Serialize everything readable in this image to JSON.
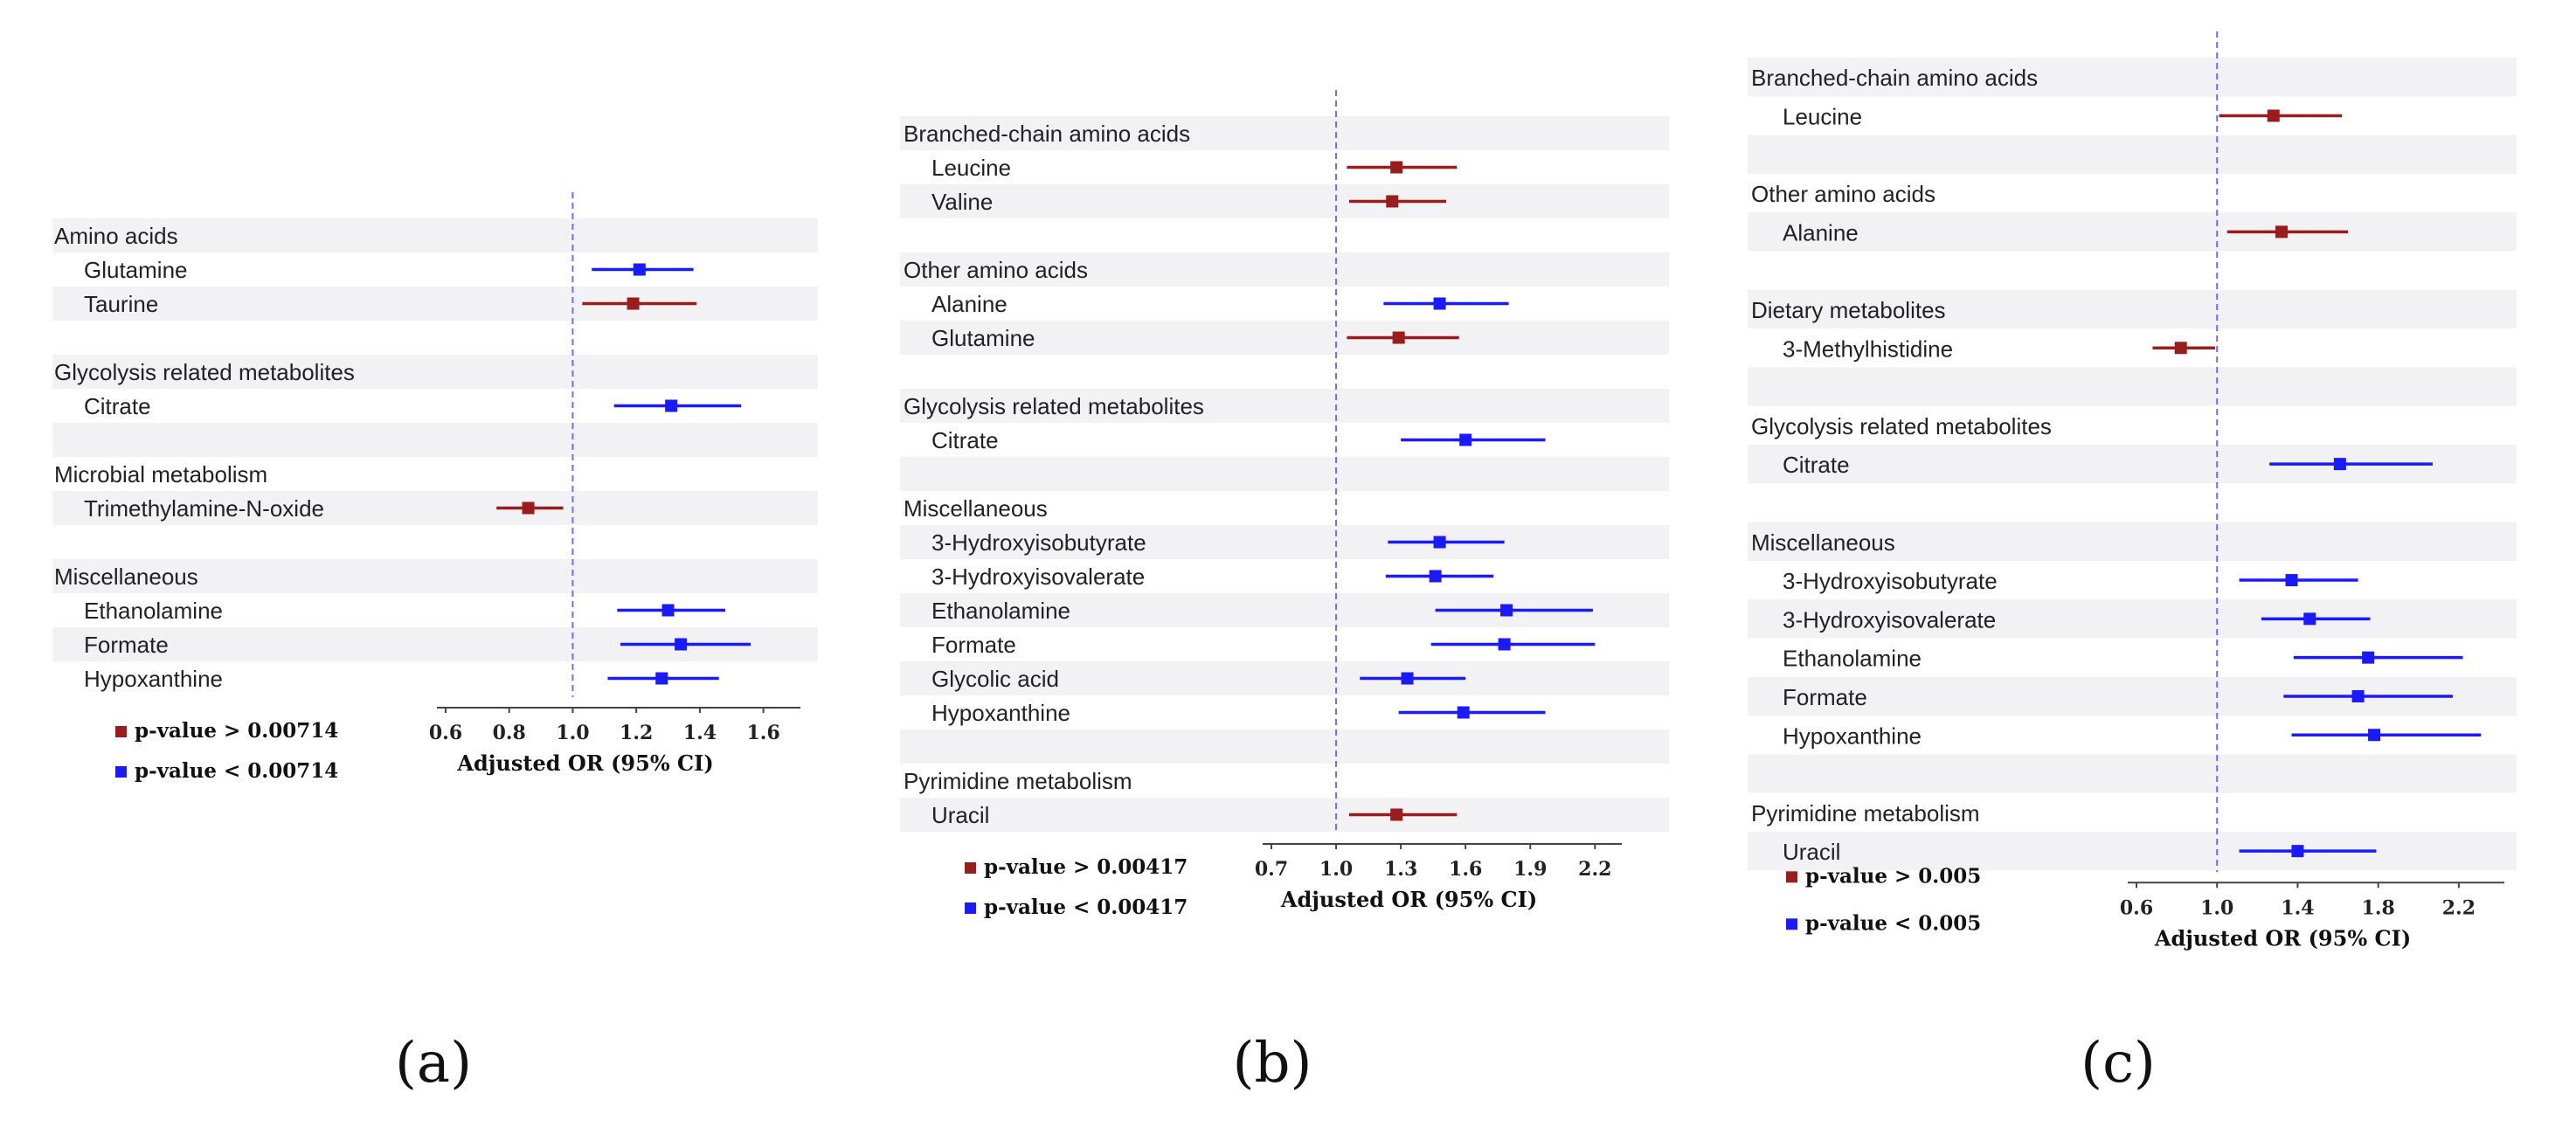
{
  "chart_data": [
    {
      "type": "forest",
      "panel_label": "(a)",
      "xlabel": "Adjusted OR (95% CI)",
      "xlim": [
        0.6,
        1.7
      ],
      "ticks": [
        "0.6",
        "0.8",
        "1.0",
        "1.2",
        "1.4",
        "1.6"
      ],
      "reference_value": 1.0,
      "legend": [
        {
          "text": "p-value > 0.00714",
          "color": "#9b1c1c"
        },
        {
          "text": "p-value < 0.00714",
          "color": "#1a1aff"
        }
      ],
      "rows": [
        {
          "kind": "header",
          "label": "Amino acids"
        },
        {
          "kind": "item",
          "label": "Glutamine",
          "or": 1.21,
          "lo": 1.06,
          "hi": 1.38,
          "sig": true
        },
        {
          "kind": "item",
          "label": "Taurine",
          "or": 1.19,
          "lo": 1.03,
          "hi": 1.39,
          "sig": false
        },
        {
          "kind": "blank"
        },
        {
          "kind": "header",
          "label": "Glycolysis related metabolites"
        },
        {
          "kind": "item",
          "label": "Citrate",
          "or": 1.31,
          "lo": 1.13,
          "hi": 1.53,
          "sig": true
        },
        {
          "kind": "blank"
        },
        {
          "kind": "header",
          "label": "Microbial metabolism"
        },
        {
          "kind": "item",
          "label": "Trimethylamine-N-oxide",
          "or": 0.86,
          "lo": 0.76,
          "hi": 0.97,
          "sig": false
        },
        {
          "kind": "blank"
        },
        {
          "kind": "header",
          "label": "Miscellaneous"
        },
        {
          "kind": "item",
          "label": "Ethanolamine",
          "or": 1.3,
          "lo": 1.14,
          "hi": 1.48,
          "sig": true
        },
        {
          "kind": "item",
          "label": "Formate",
          "or": 1.34,
          "lo": 1.15,
          "hi": 1.56,
          "sig": true
        },
        {
          "kind": "item",
          "label": "Hypoxanthine",
          "or": 1.28,
          "lo": 1.11,
          "hi": 1.46,
          "sig": true
        }
      ]
    },
    {
      "type": "forest",
      "panel_label": "(b)",
      "xlabel": "Adjusted OR (95% CI)",
      "xlim": [
        0.7,
        2.3
      ],
      "ticks": [
        "0.7",
        "1.0",
        "1.3",
        "1.6",
        "1.9",
        "2.2"
      ],
      "reference_value": 1.0,
      "legend": [
        {
          "text": "p-value > 0.00417",
          "color": "#9b1c1c"
        },
        {
          "text": "p-value < 0.00417",
          "color": "#1a1aff"
        }
      ],
      "rows": [
        {
          "kind": "header",
          "label": "Branched-chain amino acids"
        },
        {
          "kind": "item",
          "label": "Leucine",
          "or": 1.28,
          "lo": 1.05,
          "hi": 1.56,
          "sig": false
        },
        {
          "kind": "item",
          "label": "Valine",
          "or": 1.26,
          "lo": 1.06,
          "hi": 1.51,
          "sig": false
        },
        {
          "kind": "blank"
        },
        {
          "kind": "header",
          "label": "Other amino acids"
        },
        {
          "kind": "item",
          "label": "Alanine",
          "or": 1.48,
          "lo": 1.22,
          "hi": 1.8,
          "sig": true
        },
        {
          "kind": "item",
          "label": "Glutamine",
          "or": 1.29,
          "lo": 1.05,
          "hi": 1.57,
          "sig": false
        },
        {
          "kind": "blank"
        },
        {
          "kind": "header",
          "label": "Glycolysis related metabolites"
        },
        {
          "kind": "item",
          "label": "Citrate",
          "or": 1.6,
          "lo": 1.3,
          "hi": 1.97,
          "sig": true
        },
        {
          "kind": "blank"
        },
        {
          "kind": "header",
          "label": "Miscellaneous"
        },
        {
          "kind": "item",
          "label": "3-Hydroxyisobutyrate",
          "or": 1.48,
          "lo": 1.24,
          "hi": 1.78,
          "sig": true
        },
        {
          "kind": "item",
          "label": "3-Hydroxyisovalerate",
          "or": 1.46,
          "lo": 1.23,
          "hi": 1.73,
          "sig": true
        },
        {
          "kind": "item",
          "label": "Ethanolamine",
          "or": 1.79,
          "lo": 1.46,
          "hi": 2.19,
          "sig": true
        },
        {
          "kind": "item",
          "label": "Formate",
          "or": 1.78,
          "lo": 1.44,
          "hi": 2.2,
          "sig": true
        },
        {
          "kind": "item",
          "label": "Glycolic acid",
          "or": 1.33,
          "lo": 1.11,
          "hi": 1.6,
          "sig": true
        },
        {
          "kind": "item",
          "label": "Hypoxanthine",
          "or": 1.59,
          "lo": 1.29,
          "hi": 1.97,
          "sig": true
        },
        {
          "kind": "blank"
        },
        {
          "kind": "header",
          "label": "Pyrimidine metabolism"
        },
        {
          "kind": "item",
          "label": "Uracil",
          "or": 1.28,
          "lo": 1.06,
          "hi": 1.56,
          "sig": false
        }
      ]
    },
    {
      "type": "forest",
      "panel_label": "(c)",
      "xlabel": "Adjusted OR (95% CI)",
      "xlim": [
        0.6,
        2.4
      ],
      "ticks": [
        "0.6",
        "1.0",
        "1.4",
        "1.8",
        "2.2"
      ],
      "reference_value": 1.0,
      "legend": [
        {
          "text": "p-value > 0.005",
          "color": "#9b1c1c"
        },
        {
          "text": "p-value < 0.005",
          "color": "#1a1aff"
        }
      ],
      "rows": [
        {
          "kind": "header",
          "label": "Branched-chain amino acids"
        },
        {
          "kind": "item",
          "label": "Leucine",
          "or": 1.28,
          "lo": 1.01,
          "hi": 1.62,
          "sig": false
        },
        {
          "kind": "blank"
        },
        {
          "kind": "header",
          "label": "Other amino acids"
        },
        {
          "kind": "item",
          "label": "Alanine",
          "or": 1.32,
          "lo": 1.05,
          "hi": 1.65,
          "sig": false
        },
        {
          "kind": "blank"
        },
        {
          "kind": "header",
          "label": "Dietary metabolites"
        },
        {
          "kind": "item",
          "label": "3-Methylhistidine",
          "or": 0.82,
          "lo": 0.68,
          "hi": 0.99,
          "sig": false
        },
        {
          "kind": "blank"
        },
        {
          "kind": "header",
          "label": "Glycolysis related metabolites"
        },
        {
          "kind": "item",
          "label": "Citrate",
          "or": 1.61,
          "lo": 1.26,
          "hi": 2.07,
          "sig": true
        },
        {
          "kind": "blank"
        },
        {
          "kind": "header",
          "label": "Miscellaneous"
        },
        {
          "kind": "item",
          "label": "3-Hydroxyisobutyrate",
          "or": 1.37,
          "lo": 1.11,
          "hi": 1.7,
          "sig": true
        },
        {
          "kind": "item",
          "label": "3-Hydroxyisovalerate",
          "or": 1.46,
          "lo": 1.22,
          "hi": 1.76,
          "sig": true
        },
        {
          "kind": "item",
          "label": "Ethanolamine",
          "or": 1.75,
          "lo": 1.38,
          "hi": 2.22,
          "sig": true
        },
        {
          "kind": "item",
          "label": "Formate",
          "or": 1.7,
          "lo": 1.33,
          "hi": 2.17,
          "sig": true
        },
        {
          "kind": "item",
          "label": "Hypoxanthine",
          "or": 1.78,
          "lo": 1.37,
          "hi": 2.31,
          "sig": true
        },
        {
          "kind": "blank"
        },
        {
          "kind": "header",
          "label": "Pyrimidine metabolism"
        },
        {
          "kind": "item",
          "label": "Uracil",
          "or": 1.4,
          "lo": 1.11,
          "hi": 1.79,
          "sig": true
        }
      ]
    }
  ]
}
